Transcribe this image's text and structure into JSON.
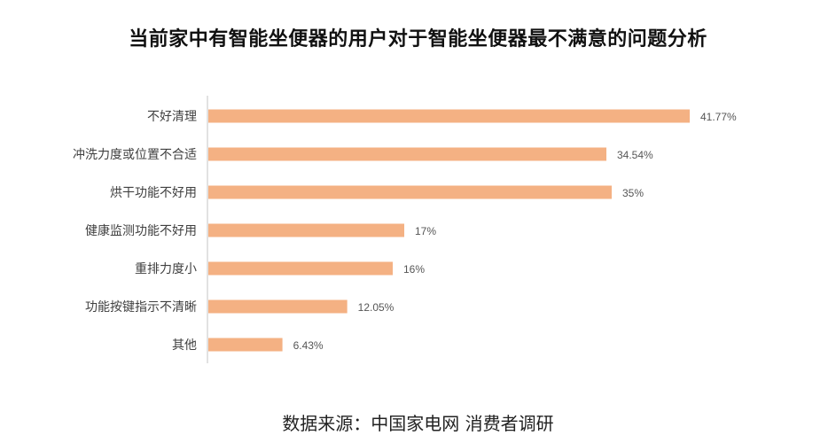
{
  "title": "当前家中有智能坐便器的用户对于智能坐便器最不满意的问题分析",
  "source": "数据来源：中国家电网  消费者调研",
  "colors": {
    "bar": "#F4B183",
    "axis": "#D9D9D9",
    "category_text": "#404040",
    "value_text": "#555555"
  },
  "chart_data": {
    "type": "bar",
    "orientation": "horizontal",
    "categories": [
      "不好清理",
      "冲洗力度或位置不合适",
      "烘干功能不好用",
      "健康监测功能不好用",
      "重排力度小",
      "功能按键指示不清晰",
      "其他"
    ],
    "values": [
      41.77,
      34.54,
      35,
      17,
      16,
      12.05,
      6.43
    ],
    "value_labels": [
      "41.77%",
      "34.54%",
      "35%",
      "17%",
      "16%",
      "12.05%",
      "6.43%"
    ],
    "xlabel": "",
    "ylabel": "",
    "xlim": [
      0,
      41.77
    ],
    "grid": false,
    "legend": "none"
  }
}
